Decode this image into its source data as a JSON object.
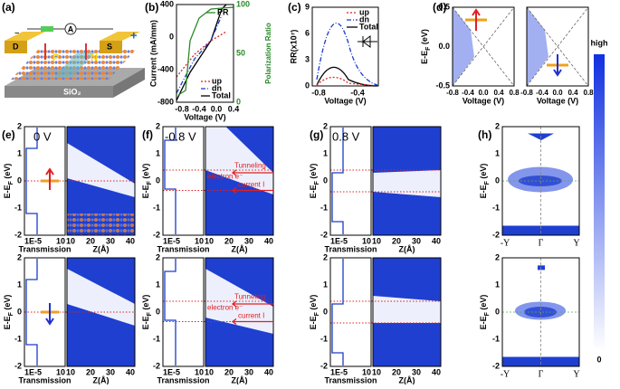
{
  "a": {
    "label": "(a)",
    "drain": "D",
    "source": "S",
    "meter": "A",
    "p": "P",
    "n": "N",
    "substrate": "SiO₂",
    "minus": "−",
    "plus": "+"
  },
  "b": {
    "label": "(b)",
    "ylabel": "Current (mA/mm)",
    "y2label": "Polarization Ratio",
    "xlabel": "Voltage (V)",
    "yticks": [
      "400",
      "0",
      "-400",
      "-800"
    ],
    "y2ticks": [
      "100",
      "50",
      "0"
    ],
    "xticks": [
      "-0.8",
      "-0.4",
      "0.0",
      "0.4"
    ],
    "legend": [
      "PR",
      "up",
      "dn",
      "Total"
    ]
  },
  "c": {
    "label": "(c)",
    "ylabel": "RR(x10⁷)",
    "yticks": [
      "9",
      "6",
      "3",
      "0"
    ],
    "xticks": [
      "-0.8",
      "-0.4"
    ],
    "xlabel": "Voltage (V)",
    "legend": [
      "up",
      "dn",
      "Total"
    ]
  },
  "d": {
    "label": "(d)",
    "ylabel": "E-E",
    "ysub": "F",
    "yunit": " (eV)",
    "yticks": [
      "0.5",
      "0.0",
      "-0.5"
    ],
    "xticks": [
      "-0.8",
      "-0.4",
      "0.0",
      "0.4",
      "0.8"
    ],
    "xlabel": "Voltage (V)"
  },
  "colorbar": {
    "high": "high",
    "low": "0"
  },
  "rows": {
    "ylabel": "E-E",
    "ysub": "F",
    "yunit": " (eV)",
    "yticks": [
      "2",
      "1",
      "0",
      "-1",
      "-2"
    ],
    "tticks": [
      "1E-5",
      "10"
    ],
    "tlabel": "Transmission",
    "zticks": [
      "10",
      "20",
      "30",
      "40"
    ],
    "zlabel": "Z(Å)"
  },
  "e": {
    "label": "(e)",
    "bias": "0 V"
  },
  "f": {
    "label": "(f)",
    "bias": "-0.8 V",
    "electron": "electron e⁻",
    "tunneling": "Tunneling",
    "current": "current I"
  },
  "g": {
    "label": "(g)",
    "bias": "0.8 V"
  },
  "h": {
    "label": "(h)",
    "kticks": [
      "-Y",
      "Γ",
      "Y"
    ]
  }
}
